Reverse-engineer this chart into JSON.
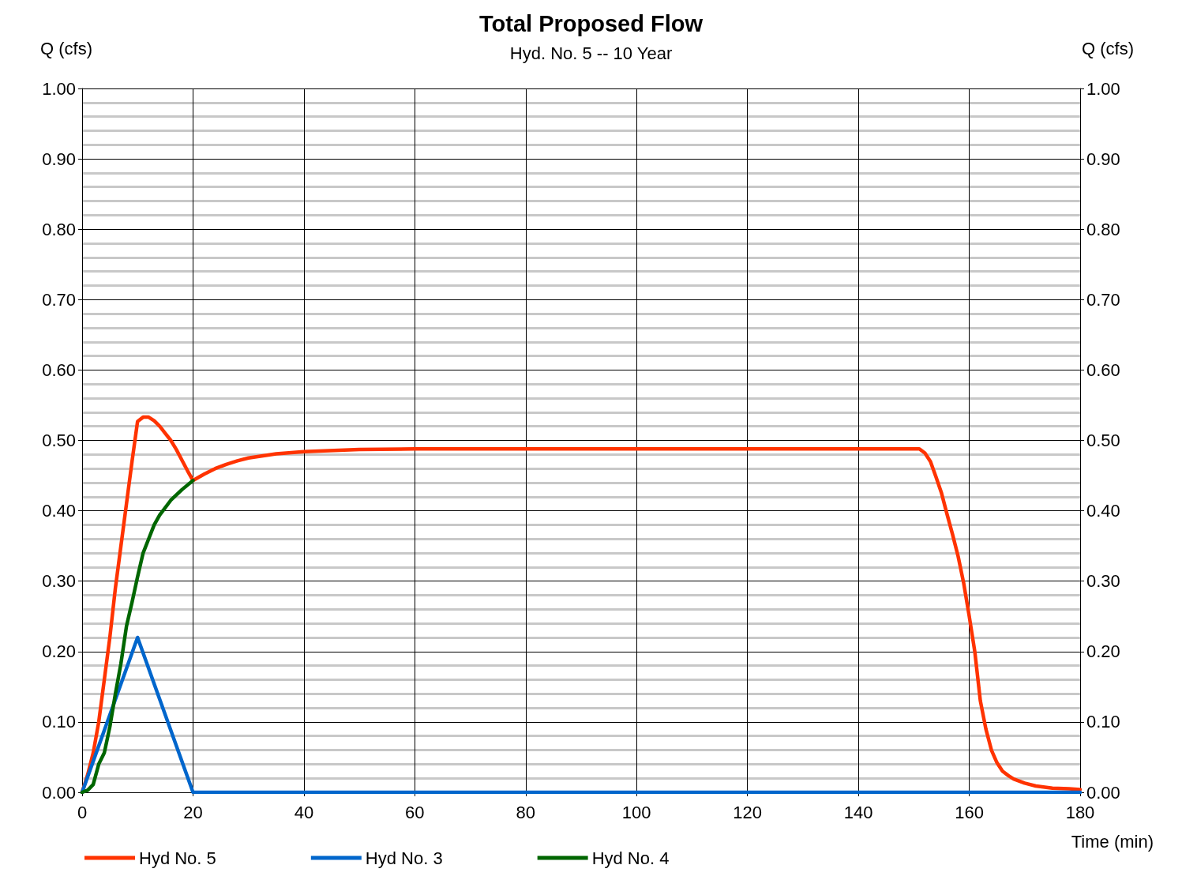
{
  "chart_data": {
    "type": "line",
    "title": "Total Proposed Flow",
    "subtitle": "Hyd. No. 5 -- 10 Year",
    "xlabel": "Time (min)",
    "ylabel": "Q (cfs)",
    "y2label": "Q (cfs)",
    "xlim": [
      0,
      180
    ],
    "xticks": [
      0,
      20,
      40,
      60,
      80,
      100,
      120,
      140,
      160,
      180
    ],
    "ylim": [
      0,
      1
    ],
    "yticks": [
      {
        "value": 0,
        "label": "0.00"
      },
      {
        "value": 0.1,
        "label": "0.10"
      },
      {
        "value": 0.2,
        "label": "0.20"
      },
      {
        "value": 0.3,
        "label": "0.30"
      },
      {
        "value": 0.4,
        "label": "0.40"
      },
      {
        "value": 0.5,
        "label": "0.50"
      },
      {
        "value": 0.6,
        "label": "0.60"
      },
      {
        "value": 0.7,
        "label": "0.70"
      },
      {
        "value": 0.8,
        "label": "0.80"
      },
      {
        "value": 0.9,
        "label": "0.90"
      },
      {
        "value": 1,
        "label": "1.00"
      }
    ],
    "y2lim": [
      0,
      1
    ],
    "y2ticks": [
      {
        "value": 0,
        "label": "0.00"
      },
      {
        "value": 0.1,
        "label": "0.10"
      },
      {
        "value": 0.2,
        "label": "0.20"
      },
      {
        "value": 0.3,
        "label": "0.30"
      },
      {
        "value": 0.4,
        "label": "0.40"
      },
      {
        "value": 0.5,
        "label": "0.50"
      },
      {
        "value": 0.6,
        "label": "0.60"
      },
      {
        "value": 0.7,
        "label": "0.70"
      },
      {
        "value": 0.8,
        "label": "0.80"
      },
      {
        "value": 0.9,
        "label": "0.90"
      },
      {
        "value": 1,
        "label": "1.00"
      }
    ],
    "grid": true,
    "legend": "bottom left",
    "marker": "none",
    "line_style": "solid",
    "series": [
      {
        "name": "Hyd No. 5",
        "color": "#ff3300",
        "x": [
          0,
          1,
          2,
          3,
          4,
          5,
          6,
          7,
          8,
          9,
          10,
          11,
          12,
          13,
          14,
          15,
          16,
          17,
          18,
          19,
          20,
          22,
          24,
          26,
          28,
          30,
          35,
          40,
          50,
          60,
          80,
          100,
          120,
          140,
          150,
          151,
          152,
          153,
          154,
          155,
          156,
          157,
          158,
          159,
          160,
          161,
          162,
          163,
          164,
          165,
          166,
          167,
          168,
          170,
          172,
          175,
          178,
          180
        ],
        "values": [
          0,
          0.025,
          0.056,
          0.1,
          0.16,
          0.22,
          0.29,
          0.35,
          0.41,
          0.47,
          0.527,
          0.533,
          0.533,
          0.528,
          0.52,
          0.51,
          0.5,
          0.487,
          0.472,
          0.457,
          0.443,
          0.452,
          0.46,
          0.466,
          0.471,
          0.475,
          0.481,
          0.484,
          0.487,
          0.488,
          0.488,
          0.488,
          0.488,
          0.488,
          0.488,
          0.488,
          0.482,
          0.47,
          0.448,
          0.425,
          0.395,
          0.366,
          0.335,
          0.297,
          0.25,
          0.2,
          0.13,
          0.09,
          0.06,
          0.042,
          0.03,
          0.024,
          0.019,
          0.013,
          0.009,
          0.006,
          0.005,
          0.004
        ]
      },
      {
        "name": "Hyd No. 3",
        "color": "#0066cc",
        "x": [
          0,
          10,
          20,
          180
        ],
        "values": [
          0,
          0.22,
          0,
          0
        ]
      },
      {
        "name": "Hyd No. 4",
        "color": "#006600",
        "x": [
          0,
          1,
          2,
          3,
          4,
          5,
          6,
          7,
          8,
          9,
          10,
          11,
          12,
          13,
          14,
          16,
          18,
          20
        ],
        "values": [
          0,
          0.003,
          0.011,
          0.04,
          0.056,
          0.093,
          0.14,
          0.183,
          0.236,
          0.27,
          0.306,
          0.34,
          0.36,
          0.38,
          0.394,
          0.415,
          0.43,
          0.443
        ]
      }
    ]
  }
}
